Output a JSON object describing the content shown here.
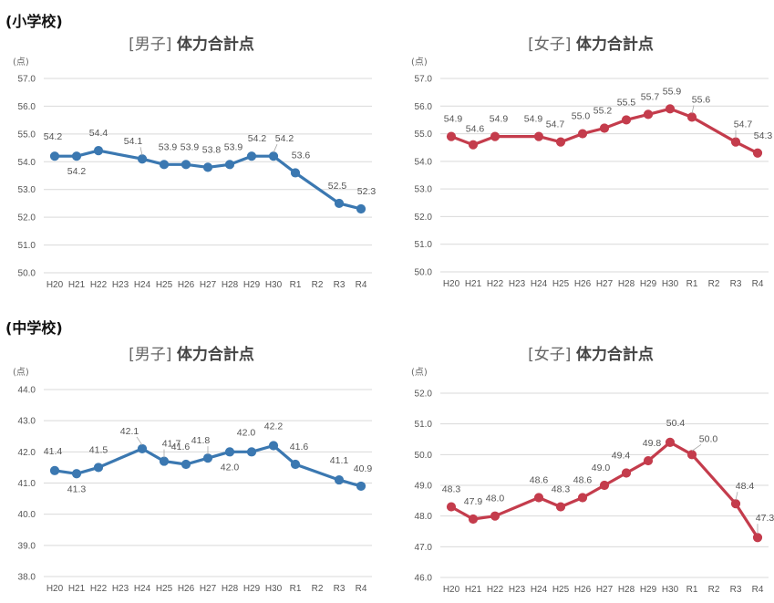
{
  "sections": {
    "elementary": "(小学校)",
    "junior_high": "(中学校)"
  },
  "colors": {
    "boys": "#3b78b1",
    "girls": "#c43c4c"
  },
  "chart_data": [
    {
      "type": "line",
      "title_bracket": "[男子]",
      "title": "体力合計点",
      "unit": "(点)",
      "categories": [
        "H20",
        "H21",
        "H22",
        "H23",
        "H24",
        "H25",
        "H26",
        "H27",
        "H28",
        "H29",
        "H30",
        "R1",
        "R2",
        "R3",
        "R4"
      ],
      "values": [
        54.2,
        54.2,
        54.4,
        null,
        54.1,
        53.9,
        53.9,
        53.8,
        53.9,
        54.2,
        54.2,
        53.6,
        null,
        52.5,
        52.3
      ],
      "data_labels": [
        "54.2",
        "54.2",
        "54.4",
        "",
        "54.1",
        "53.9",
        "53.9",
        "53.8",
        "53.9",
        "54.2",
        "54.2",
        "53.6",
        "",
        "52.5",
        "52.3"
      ],
      "ylim": [
        50.0,
        57.0
      ],
      "yticks": [
        "50.0",
        "51.0",
        "52.0",
        "53.0",
        "54.0",
        "55.0",
        "56.0",
        "57.0"
      ],
      "series_color": "boys",
      "grid": true
    },
    {
      "type": "line",
      "title_bracket": "[女子]",
      "title": "体力合計点",
      "unit": "(点)",
      "categories": [
        "H20",
        "H21",
        "H22",
        "H23",
        "H24",
        "H25",
        "H26",
        "H27",
        "H28",
        "H29",
        "H30",
        "R1",
        "R2",
        "R3",
        "R4"
      ],
      "values": [
        54.9,
        54.6,
        54.9,
        null,
        54.9,
        54.7,
        55.0,
        55.2,
        55.5,
        55.7,
        55.9,
        55.6,
        null,
        54.7,
        54.3
      ],
      "data_labels": [
        "54.9",
        "54.6",
        "54.9",
        "",
        "54.9",
        "54.7",
        "55.0",
        "55.2",
        "55.5",
        "55.7",
        "55.9",
        "55.6",
        "",
        "54.7",
        "54.3"
      ],
      "ylim": [
        50.0,
        57.0
      ],
      "yticks": [
        "50.0",
        "51.0",
        "52.0",
        "53.0",
        "54.0",
        "55.0",
        "56.0",
        "57.0"
      ],
      "series_color": "girls",
      "grid": true
    },
    {
      "type": "line",
      "title_bracket": "[男子]",
      "title": "体力合計点",
      "unit": "(点)",
      "categories": [
        "H20",
        "H21",
        "H22",
        "H23",
        "H24",
        "H25",
        "H26",
        "H27",
        "H28",
        "H29",
        "H30",
        "R1",
        "R2",
        "R3",
        "R4"
      ],
      "values": [
        41.4,
        41.3,
        41.5,
        null,
        42.1,
        41.7,
        41.6,
        41.8,
        42.0,
        42.0,
        42.2,
        41.6,
        null,
        41.1,
        40.9
      ],
      "data_labels": [
        "41.4",
        "41.3",
        "41.5",
        "",
        "42.1",
        "41.7",
        "41.6",
        "41.8",
        "42.0",
        "42.0",
        "42.2",
        "41.6",
        "",
        "41.1",
        "40.9"
      ],
      "ylim": [
        38.0,
        44.0
      ],
      "yticks": [
        "38.0",
        "39.0",
        "40.0",
        "41.0",
        "42.0",
        "43.0",
        "44.0"
      ],
      "series_color": "boys",
      "grid": true
    },
    {
      "type": "line",
      "title_bracket": "[女子]",
      "title": "体力合計点",
      "unit": "(点)",
      "categories": [
        "H20",
        "H21",
        "H22",
        "H23",
        "H24",
        "H25",
        "H26",
        "H27",
        "H28",
        "H29",
        "H30",
        "R1",
        "R2",
        "R3",
        "R4"
      ],
      "values": [
        48.3,
        47.9,
        48.0,
        null,
        48.6,
        48.3,
        48.6,
        49.0,
        49.4,
        49.8,
        50.4,
        50.0,
        null,
        48.4,
        47.3
      ],
      "data_labels": [
        "48.3",
        "47.9",
        "48.0",
        "",
        "48.6",
        "48.3",
        "48.6",
        "49.0",
        "49.4",
        "49.8",
        "50.4",
        "50.0",
        "",
        "48.4",
        "47.3"
      ],
      "ylim": [
        46.0,
        52.0
      ],
      "yticks": [
        "46.0",
        "47.0",
        "48.0",
        "49.0",
        "50.0",
        "51.0",
        "52.0"
      ],
      "series_color": "girls",
      "grid": true
    }
  ]
}
